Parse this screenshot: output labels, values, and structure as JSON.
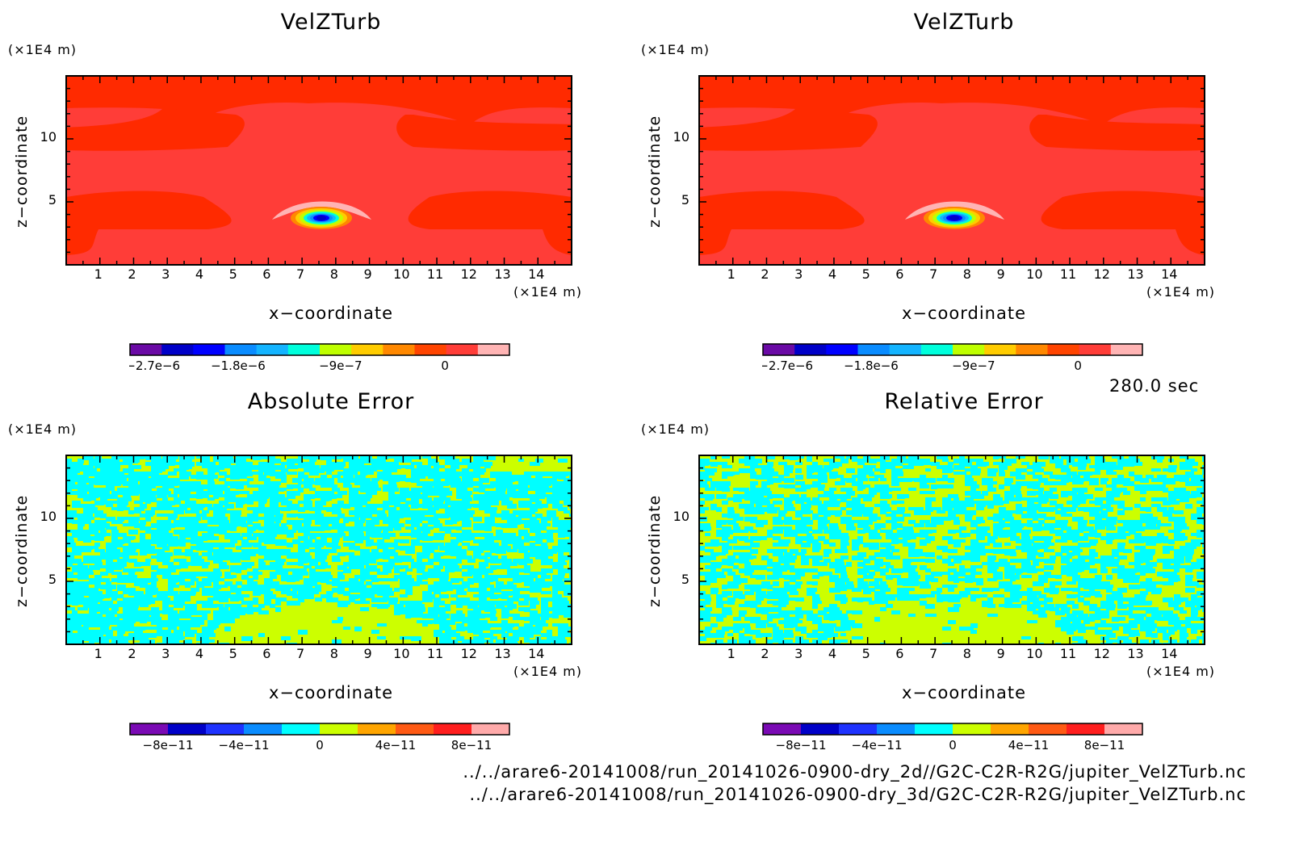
{
  "time_label": "280.0 sec",
  "paths": [
    "../../arare6-20141008/run_20141026-0900-dry_2d//G2C-C2R-R2G/jupiter_VelZTurb.nc",
    "../../arare6-20141008/run_20141026-0900-dry_3d/G2C-C2R-R2G/jupiter_VelZTurb.nc"
  ],
  "colors": {
    "field_main": "#ff3d38",
    "field_dark": "#ff2a00",
    "field_light": "#ffb4b4",
    "err_cyan": "#00ffff",
    "err_green": "#ccff00"
  },
  "chart_data": [
    {
      "type": "heatmap",
      "title": "VelZTurb",
      "xlabel": "x−coordinate",
      "ylabel": "z−coordinate",
      "x_unit": "(×1E4 m)",
      "y_unit": "(×1E4 m)",
      "x_ticks": [
        "1",
        "2",
        "3",
        "4",
        "5",
        "6",
        "7",
        "8",
        "9",
        "10",
        "11",
        "12",
        "13",
        "14"
      ],
      "y_ticks": [
        "5",
        "10"
      ],
      "xlim": [
        0,
        15
      ],
      "ylim": [
        0,
        15
      ],
      "colorbar": {
        "labels": [
          "−2.7e−6",
          "−1.8e−6",
          "−9e−7",
          "0"
        ],
        "colors": [
          "#6a0aa5",
          "#0000c8",
          "#0000ff",
          "#0a8cff",
          "#14b4ff",
          "#00ffdc",
          "#bfff00",
          "#ffcc00",
          "#ff8800",
          "#ff4400",
          "#ff3d38",
          "#ffb4b4"
        ]
      }
    },
    {
      "type": "heatmap",
      "title": "VelZTurb",
      "xlabel": "x−coordinate",
      "ylabel": "z−coordinate",
      "x_unit": "(×1E4 m)",
      "y_unit": "(×1E4 m)",
      "x_ticks": [
        "1",
        "2",
        "3",
        "4",
        "5",
        "6",
        "7",
        "8",
        "9",
        "10",
        "11",
        "12",
        "13",
        "14"
      ],
      "y_ticks": [
        "5",
        "10"
      ],
      "xlim": [
        0,
        15
      ],
      "ylim": [
        0,
        15
      ],
      "colorbar": {
        "labels": [
          "−2.7e−6",
          "−1.8e−6",
          "−9e−7",
          "0"
        ],
        "colors": [
          "#6a0aa5",
          "#0000c8",
          "#0000ff",
          "#0a8cff",
          "#14b4ff",
          "#00ffdc",
          "#bfff00",
          "#ffcc00",
          "#ff8800",
          "#ff4400",
          "#ff3d38",
          "#ffb4b4"
        ]
      }
    },
    {
      "type": "heatmap",
      "title": "Absolute Error",
      "xlabel": "x−coordinate",
      "ylabel": "z−coordinate",
      "x_unit": "(×1E4 m)",
      "y_unit": "(×1E4 m)",
      "x_ticks": [
        "1",
        "2",
        "3",
        "4",
        "5",
        "6",
        "7",
        "8",
        "9",
        "10",
        "11",
        "12",
        "13",
        "14"
      ],
      "y_ticks": [
        "5",
        "10"
      ],
      "xlim": [
        0,
        15
      ],
      "ylim": [
        0,
        15
      ],
      "colorbar": {
        "labels": [
          "−8e−11",
          "−4e−11",
          "0",
          "4e−11",
          "8e−11"
        ],
        "colors": [
          "#7a0ab4",
          "#0000c8",
          "#1e32ff",
          "#0a8cff",
          "#00ffff",
          "#ccff00",
          "#ffa500",
          "#ff5a14",
          "#ff1e1e",
          "#ffaaaa"
        ]
      }
    },
    {
      "type": "heatmap",
      "title": "Relative Error",
      "xlabel": "x−coordinate",
      "ylabel": "z−coordinate",
      "x_unit": "(×1E4 m)",
      "y_unit": "(×1E4 m)",
      "x_ticks": [
        "1",
        "2",
        "3",
        "4",
        "5",
        "6",
        "7",
        "8",
        "9",
        "10",
        "11",
        "12",
        "13",
        "14"
      ],
      "y_ticks": [
        "5",
        "10"
      ],
      "xlim": [
        0,
        15
      ],
      "ylim": [
        0,
        15
      ],
      "colorbar": {
        "labels": [
          "−8e−11",
          "−4e−11",
          "0",
          "4e−11",
          "8e−11"
        ],
        "colors": [
          "#7a0ab4",
          "#0000c8",
          "#1e32ff",
          "#0a8cff",
          "#00ffff",
          "#ccff00",
          "#ffa500",
          "#ff5a14",
          "#ff1e1e",
          "#ffaaaa"
        ]
      }
    }
  ]
}
